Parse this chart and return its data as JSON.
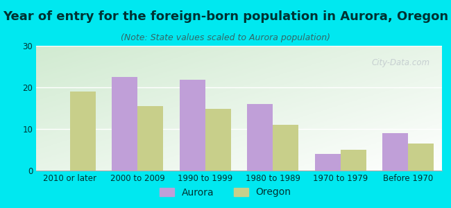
{
  "title": "Year of entry for the foreign-born population in Aurora, Oregon",
  "subtitle": "(Note: State values scaled to Aurora population)",
  "categories": [
    "2010 or later",
    "2000 to 2009",
    "1990 to 1999",
    "1980 to 1989",
    "1970 to 1979",
    "Before 1970"
  ],
  "aurora_values": [
    0,
    22.5,
    21.8,
    16.0,
    4.0,
    9.0
  ],
  "oregon_values": [
    19.0,
    15.5,
    14.8,
    11.0,
    5.0,
    6.5
  ],
  "aurora_color": "#c09fd8",
  "oregon_color": "#c8cf8a",
  "background_outer": "#00e8f0",
  "ylim": [
    0,
    30
  ],
  "yticks": [
    0,
    10,
    20,
    30
  ],
  "bar_width": 0.38,
  "title_fontsize": 13,
  "subtitle_fontsize": 9,
  "tick_fontsize": 8.5,
  "legend_fontsize": 10,
  "watermark": "City-Data.com"
}
